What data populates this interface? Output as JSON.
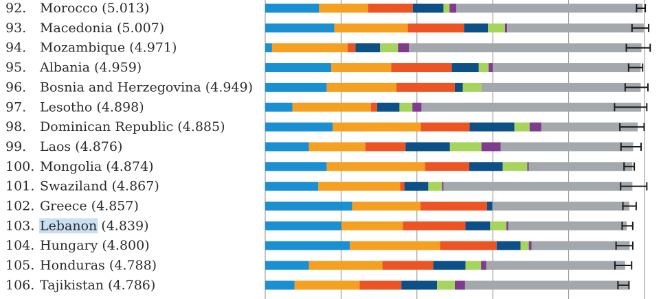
{
  "chart_data": {
    "type": "bar",
    "stacked": true,
    "orientation": "horizontal",
    "title": "",
    "xlabel": "",
    "ylabel": "",
    "segment_colors": [
      "#1a8fd1",
      "#f5a020",
      "#ec5424",
      "#0d4f87",
      "#a6d45c",
      "#7f3c8d",
      "#a3a8ac"
    ],
    "error_bar_color": "#1a1a1a",
    "highlight_color": "#c9dff2",
    "highlighted_country": "Lebanon",
    "rows": [
      {
        "rank": "92.",
        "country": "Morocco",
        "score": "(5.013)",
        "segments": [
          0.142,
          0.129,
          0.118,
          0.081,
          0.016,
          0.018,
          0.491
        ],
        "interval": [
          0.979,
          1.002
        ]
      },
      {
        "rank": "93.",
        "country": "Macedonia",
        "score": "(5.007)",
        "segments": [
          0.182,
          0.194,
          0.148,
          0.063,
          0.045,
          0.006,
          0.36
        ],
        "interval": [
          0.967,
          1.011
        ]
      },
      {
        "rank": "94.",
        "country": "Mozambique",
        "score": "(4.971)",
        "segments": [
          0.018,
          0.199,
          0.021,
          0.065,
          0.047,
          0.029,
          0.613
        ],
        "interval": [
          0.952,
          1.015
        ]
      },
      {
        "rank": "95.",
        "country": "Albania",
        "score": "(4.959)",
        "segments": [
          0.174,
          0.158,
          0.16,
          0.071,
          0.026,
          0.011,
          0.39
        ],
        "interval": [
          0.958,
          0.995
        ]
      },
      {
        "rank": "96.",
        "country": "Bosnia and Herzegovina",
        "score": "(4.949)",
        "segments": [
          0.162,
          0.184,
          0.154,
          0.021,
          0.049,
          0.0,
          0.42
        ],
        "interval": [
          0.949,
          1.009
        ]
      },
      {
        "rank": "97.",
        "country": "Lesotho",
        "score": "(4.898)",
        "segments": [
          0.072,
          0.207,
          0.016,
          0.059,
          0.034,
          0.024,
          0.579
        ],
        "interval": [
          0.921,
          1.006
        ]
      },
      {
        "rank": "98.",
        "country": "Dominican Republic",
        "score": "(4.885)",
        "segments": [
          0.178,
          0.232,
          0.129,
          0.118,
          0.04,
          0.031,
          0.254
        ],
        "interval": [
          0.935,
          0.999
        ]
      },
      {
        "rank": "99.",
        "country": "Laos",
        "score": "(4.876)",
        "segments": [
          0.115,
          0.149,
          0.106,
          0.117,
          0.083,
          0.051,
          0.349
        ],
        "interval": [
          0.938,
          0.991
        ]
      },
      {
        "rank": "100.",
        "country": "Mongolia",
        "score": "(4.874)",
        "segments": [
          0.162,
          0.259,
          0.117,
          0.088,
          0.065,
          0.004,
          0.273
        ],
        "interval": [
          0.946,
          0.973
        ]
      },
      {
        "rank": "101.",
        "country": "Swaziland",
        "score": "(4.867)",
        "segments": [
          0.14,
          0.216,
          0.011,
          0.063,
          0.036,
          0.004,
          0.498
        ],
        "interval": [
          0.937,
          1.006
        ]
      },
      {
        "rank": "102.",
        "country": "Greece",
        "score": "(4.857)",
        "segments": [
          0.229,
          0.18,
          0.176,
          0.014,
          0.0,
          0.0,
          0.361
        ],
        "interval": [
          0.943,
          0.978
        ]
      },
      {
        "rank": "103.",
        "country": "Lebanon",
        "score": "(4.839)",
        "segments": [
          0.201,
          0.162,
          0.165,
          0.065,
          0.043,
          0.005,
          0.312
        ],
        "interval": [
          0.941,
          0.969
        ]
      },
      {
        "rank": "104.",
        "country": "Hungary",
        "score": "(4.800)",
        "segments": [
          0.223,
          0.238,
          0.149,
          0.063,
          0.022,
          0.007,
          0.259
        ],
        "interval": [
          0.925,
          0.969
        ]
      },
      {
        "rank": "105.",
        "country": "Honduras",
        "score": "(4.788)",
        "segments": [
          0.115,
          0.194,
          0.134,
          0.085,
          0.041,
          0.014,
          0.366
        ],
        "interval": [
          0.922,
          0.966
        ]
      },
      {
        "rank": "106.",
        "country": "Tajikistan",
        "score": "(4.786)",
        "segments": [
          0.077,
          0.172,
          0.11,
          0.094,
          0.047,
          0.027,
          0.432
        ],
        "interval": [
          0.93,
          0.959
        ]
      }
    ]
  }
}
